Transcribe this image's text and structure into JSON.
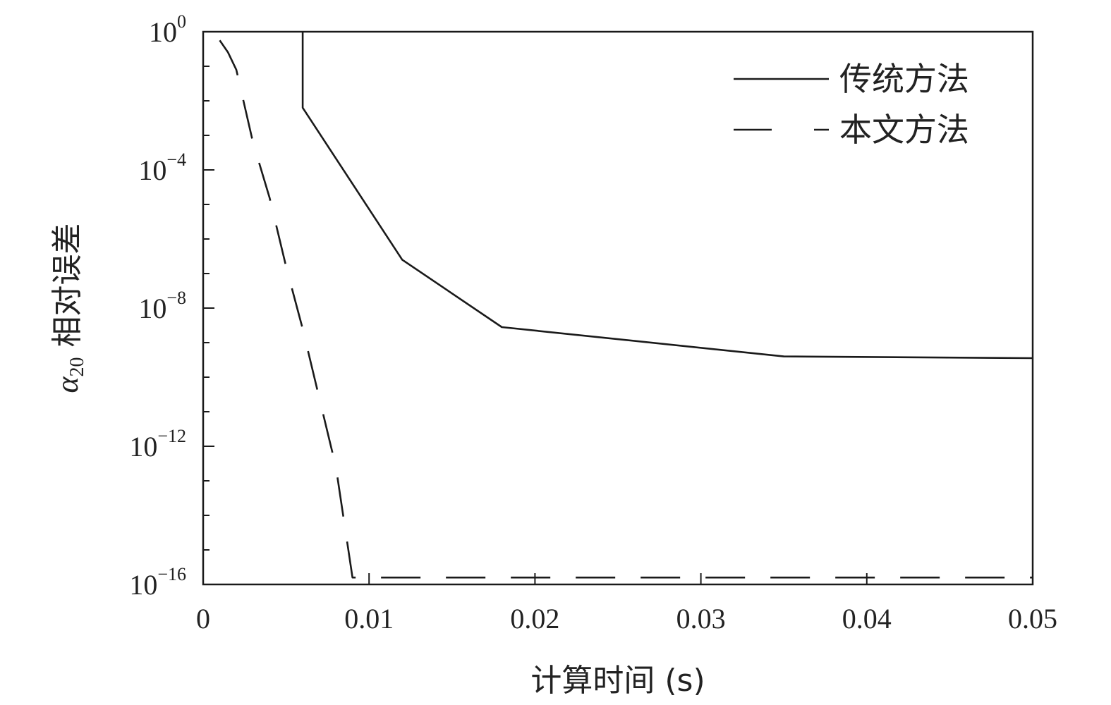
{
  "chart_data": {
    "type": "line",
    "title": "",
    "xlabel": "计算时间 (s)",
    "ylabel_symbol": "α",
    "ylabel_subscript": "20",
    "ylabel_text": "相对误差",
    "xlim": [
      0,
      0.05
    ],
    "ylim_log10": [
      -16,
      0
    ],
    "y_scale": "log",
    "grid": false,
    "legend_position": "top-right",
    "x_ticks": [
      {
        "value": 0,
        "label": "0"
      },
      {
        "value": 0.01,
        "label": "0.01"
      },
      {
        "value": 0.02,
        "label": "0.02"
      },
      {
        "value": 0.03,
        "label": "0.03"
      },
      {
        "value": 0.04,
        "label": "0.04"
      },
      {
        "value": 0.05,
        "label": "0.05"
      }
    ],
    "y_ticks": [
      {
        "exp": 0,
        "base": "10",
        "sup": "0"
      },
      {
        "exp": -4,
        "base": "10",
        "sup": "−4"
      },
      {
        "exp": -8,
        "base": "10",
        "sup": "−8"
      },
      {
        "exp": -12,
        "base": "10",
        "sup": "−12"
      },
      {
        "exp": -16,
        "base": "10",
        "sup": "−16"
      }
    ],
    "series": [
      {
        "name": "传统方法",
        "style": "solid",
        "color": "#1a1a1a",
        "points": [
          {
            "x": 0.006,
            "log10_y": 0
          },
          {
            "x": 0.006,
            "log10_y": -2.2
          },
          {
            "x": 0.012,
            "log10_y": -6.6
          },
          {
            "x": 0.018,
            "log10_y": -8.55
          },
          {
            "x": 0.035,
            "log10_y": -9.4
          },
          {
            "x": 0.05,
            "log10_y": -9.45
          }
        ]
      },
      {
        "name": "本文方法",
        "style": "dashed",
        "color": "#1a1a1a",
        "points": [
          {
            "x": 0.001,
            "log10_y": -0.25
          },
          {
            "x": 0.0015,
            "log10_y": -0.6
          },
          {
            "x": 0.002,
            "log10_y": -1.1
          },
          {
            "x": 0.003,
            "log10_y": -3.2
          },
          {
            "x": 0.004,
            "log10_y": -4.8
          },
          {
            "x": 0.005,
            "log10_y": -6.8
          },
          {
            "x": 0.006,
            "log10_y": -8.6
          },
          {
            "x": 0.007,
            "log10_y": -10.6
          },
          {
            "x": 0.008,
            "log10_y": -12.6
          },
          {
            "x": 0.009,
            "log10_y": -15.8
          },
          {
            "x": 0.05,
            "log10_y": -15.8
          }
        ]
      }
    ]
  }
}
